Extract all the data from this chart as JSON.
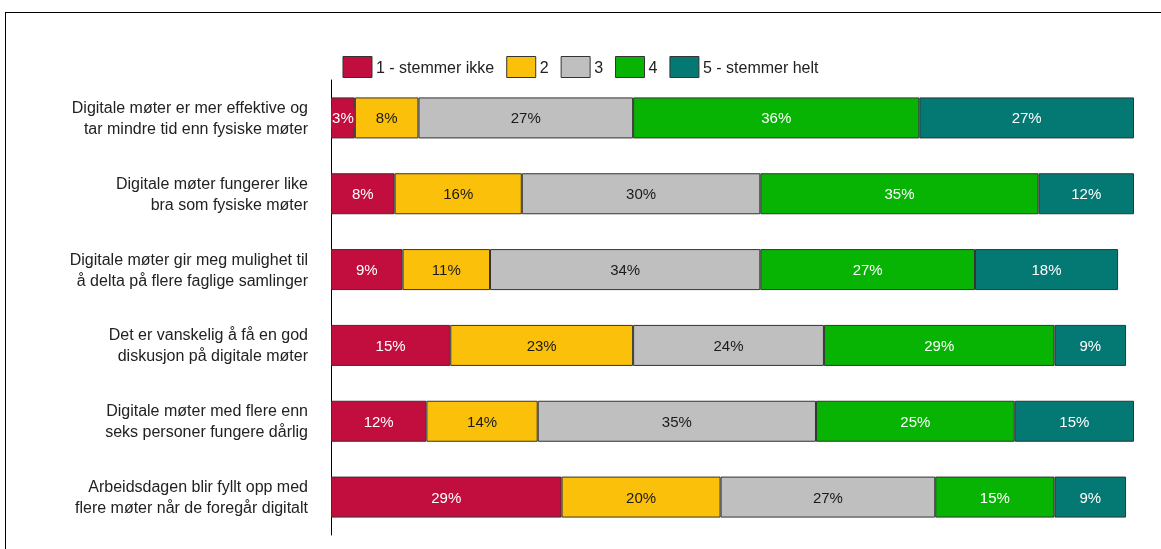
{
  "chart_data": {
    "type": "bar",
    "orientation": "horizontal",
    "stacked": true,
    "legend": "top",
    "tick_labels": "y",
    "categories": [
      "Digitale møter er mer effektive og\ntar mindre tid enn fysiske møter",
      "Digitale møter fungerer like\nbra som fysiske møter",
      "Digitale møter gir meg mulighet til\nå delta på flere faglige samlinger",
      "Det er vanskelig å få en god\ndiskusjon på digitale møter",
      "Digitale møter med flere enn\nseks personer fungere dårlig",
      "Arbeidsdagen blir fyllt opp med\nflere møter når de foregår digitalt"
    ],
    "series": [
      {
        "name": "1 - stemmer ikke",
        "color": "#c20e3e",
        "values": [
          3,
          8,
          9,
          15,
          12,
          29
        ],
        "value_labels": [
          "3%",
          "8%",
          "9%",
          "15%",
          "12%",
          "29%"
        ]
      },
      {
        "name": "2",
        "color": "#fac00a",
        "values": [
          8,
          16,
          11,
          23,
          14,
          20
        ],
        "value_labels": [
          "8%",
          "16%",
          "11%",
          "23%",
          "14%",
          "20%"
        ]
      },
      {
        "name": "3",
        "color": "#bfbfbf",
        "values": [
          27,
          30,
          34,
          24,
          35,
          27
        ],
        "value_labels": [
          "27%",
          "30%",
          "34%",
          "24%",
          "35%",
          "27%"
        ]
      },
      {
        "name": "4",
        "color": "#07b404",
        "values": [
          36,
          35,
          27,
          29,
          25,
          15
        ],
        "value_labels": [
          "36%",
          "35%",
          "27%",
          "29%",
          "25%",
          "15%"
        ]
      },
      {
        "name": "5 - stemmer helt",
        "color": "#047873",
        "values": [
          27,
          12,
          18,
          9,
          15,
          9
        ],
        "value_labels": [
          "27%",
          "12%",
          "18%",
          "9%",
          "15%",
          "9%"
        ]
      }
    ]
  }
}
